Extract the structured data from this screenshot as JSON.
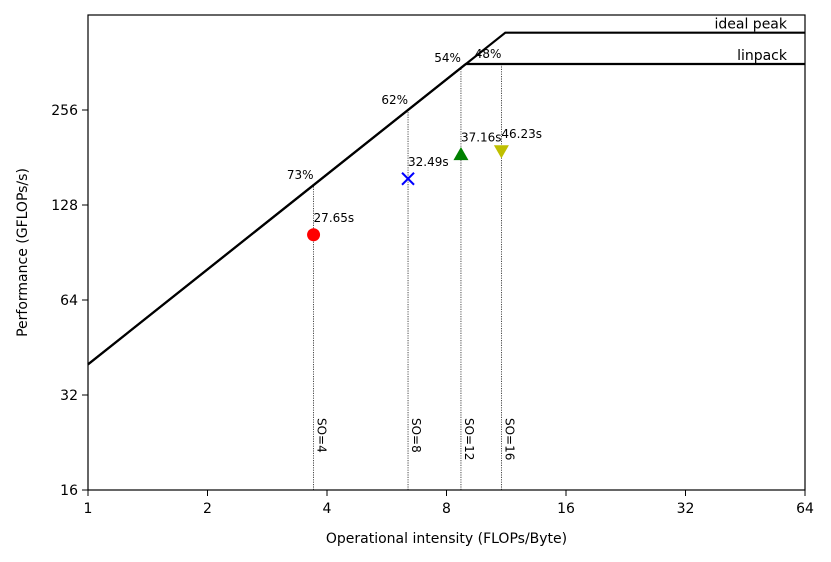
{
  "chart_data": {
    "type": "scatter",
    "scale": "log2-log2",
    "xlabel": "Operational intensity (FLOPs/Byte)",
    "ylabel": "Performance (GFLOPs/s)",
    "xlim": [
      1,
      64
    ],
    "ylim": [
      16,
      512
    ],
    "xticks": [
      1,
      2,
      4,
      8,
      16,
      32,
      64
    ],
    "yticks": [
      16,
      32,
      64,
      128,
      256
    ],
    "roofline": {
      "slope_gflops_at_x1": 40,
      "ceilings": [
        {
          "name": "ideal peak",
          "value": 450
        },
        {
          "name": "linpack",
          "value": 358
        }
      ]
    },
    "points": [
      {
        "so": "SO=4",
        "x": 3.7,
        "y": 103,
        "time": "27.65s",
        "marker": "circle",
        "color": "#ff0000",
        "pct": "73%"
      },
      {
        "so": "SO=8",
        "x": 6.4,
        "y": 155,
        "time": "32.49s",
        "marker": "x",
        "color": "#0000ff",
        "pct": "62%"
      },
      {
        "so": "SO=12",
        "x": 8.7,
        "y": 185,
        "time": "37.16s",
        "marker": "triangle-up",
        "color": "#008000",
        "pct": "54%"
      },
      {
        "so": "SO=16",
        "x": 11.0,
        "y": 190,
        "time": "46.23s",
        "marker": "triangle-down",
        "color": "#bfbf00",
        "pct": "48%"
      }
    ]
  }
}
